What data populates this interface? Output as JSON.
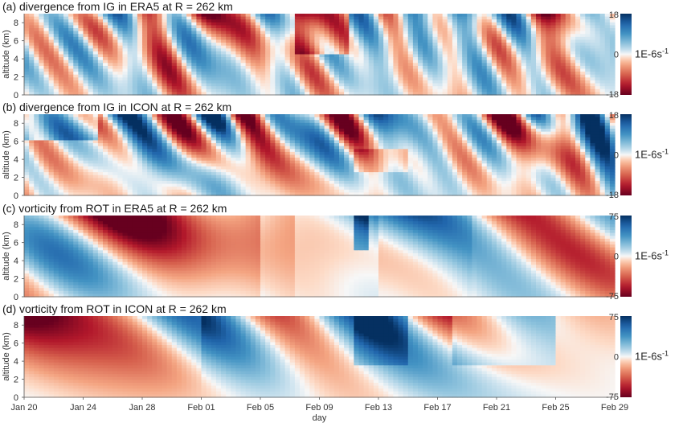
{
  "chart_data": [
    {
      "type": "heatmap",
      "title": "(a) divergence from IG in ERA5 at R = 262 km",
      "ylabel": "altitude (km)",
      "ylim": [
        0,
        9
      ],
      "yticks": [
        "0",
        "2",
        "4",
        "6",
        "8"
      ],
      "colorbar": {
        "ticks": [
          "18",
          "0",
          "-18"
        ],
        "range": [
          -18,
          18
        ],
        "unit": "1E-6s",
        "unit_sup": "-1"
      },
      "colors": {
        "positive": "#08306b",
        "zero": "#f7f7f7",
        "negative": "#67001f"
      }
    },
    {
      "type": "heatmap",
      "title": "(b) divergence from IG in ICON at R = 262 km",
      "ylabel": "altitude (km)",
      "ylim": [
        0,
        9
      ],
      "yticks": [
        "0",
        "2",
        "4",
        "6",
        "8"
      ],
      "colorbar": {
        "ticks": [
          "18",
          "0",
          "-18"
        ],
        "range": [
          -18,
          18
        ],
        "unit": "1E-6s",
        "unit_sup": "-1"
      },
      "colors": {
        "positive": "#08306b",
        "zero": "#f7f7f7",
        "negative": "#67001f"
      }
    },
    {
      "type": "heatmap",
      "title": "(c) vorticity from ROT in ERA5 at R = 262 km",
      "ylabel": "altitude (km)",
      "ylim": [
        0,
        9
      ],
      "yticks": [
        "0",
        "2",
        "4",
        "6",
        "8"
      ],
      "colorbar": {
        "ticks": [
          "75",
          "0",
          "-75"
        ],
        "range": [
          -75,
          75
        ],
        "unit": "1E-6s",
        "unit_sup": "-1"
      },
      "colors": {
        "positive": "#08306b",
        "zero": "#f7f7f7",
        "negative": "#67001f"
      }
    },
    {
      "type": "heatmap",
      "title": "(d) vorticity from ROT in ICON at R = 262 km",
      "ylabel": "altitude (km)",
      "ylim": [
        0,
        9
      ],
      "yticks": [
        "0",
        "2",
        "4",
        "6",
        "8"
      ],
      "xlabel": "day",
      "xticks": [
        "Jan 20",
        "Jan 24",
        "Jan 28",
        "Feb 01",
        "Feb 05",
        "Feb 09",
        "Feb 13",
        "Feb 17",
        "Feb 21",
        "Feb 25",
        "Feb 29"
      ],
      "colorbar": {
        "ticks": [
          "75",
          "0",
          "-75"
        ],
        "range": [
          -75,
          75
        ],
        "unit": "1E-6s",
        "unit_sup": "-1"
      },
      "colors": {
        "positive": "#08306b",
        "zero": "#f7f7f7",
        "negative": "#67001f"
      }
    }
  ]
}
